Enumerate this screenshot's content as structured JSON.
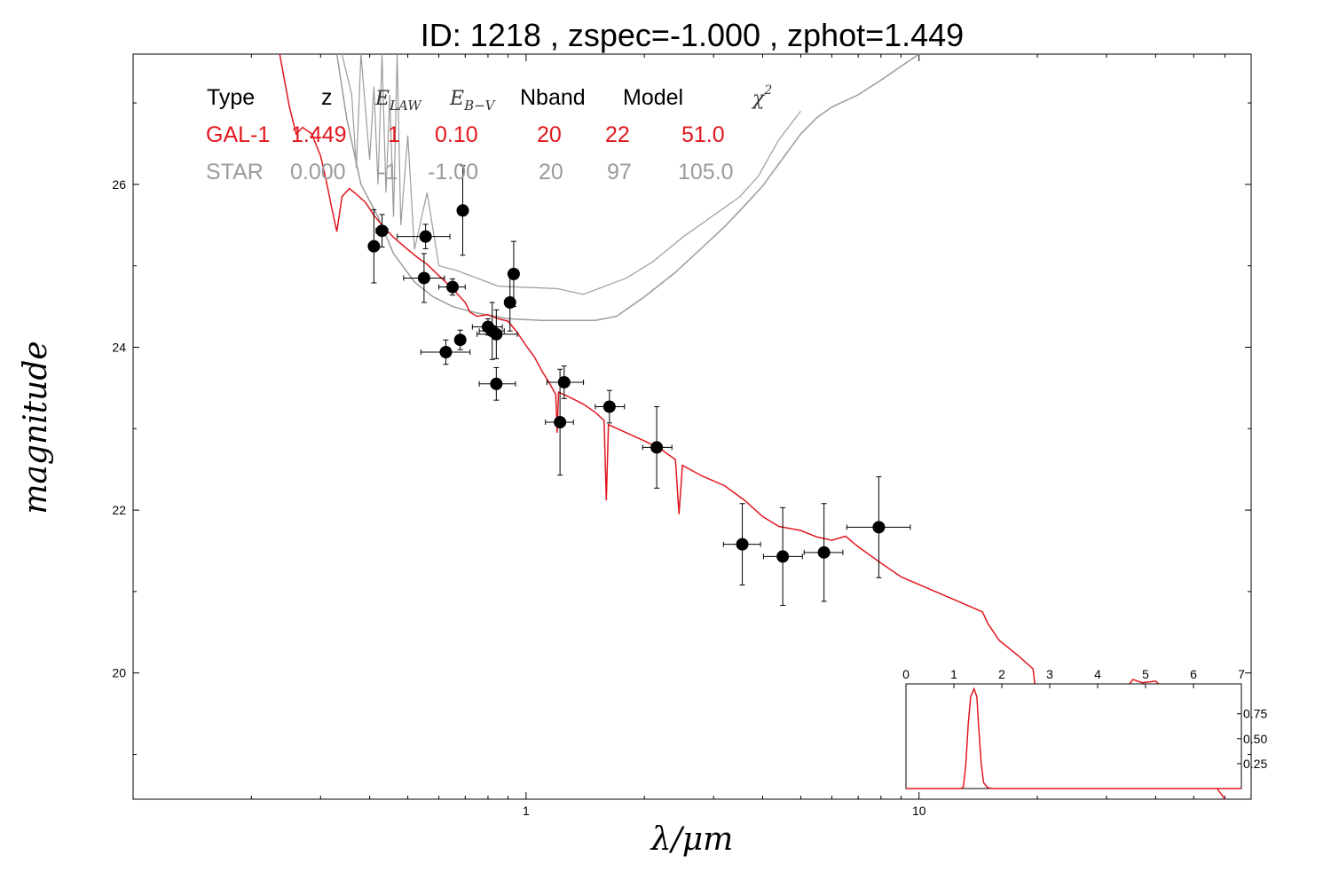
{
  "title": "ID:  1218  , zspec=-1.000 , zphot=1.449",
  "colors": {
    "gal": "#e0171d",
    "star": "#9b9b9b",
    "point": "#000000"
  },
  "table": {
    "headers": [
      "Type",
      "z",
      "E",
      "LAW",
      "E",
      "B−V",
      "Nband",
      "Model",
      "χ",
      "2"
    ],
    "rows": [
      {
        "cells": [
          "GAL-1",
          "1.449",
          "1",
          "0.10",
          "20",
          "22",
          "51.0"
        ]
      },
      {
        "cells": [
          "STAR",
          "0.000",
          "-1",
          "-1.00",
          "20",
          "97",
          "105.0"
        ]
      }
    ]
  },
  "chart_data": {
    "type": "scatter",
    "xlabel": "λ/μm",
    "ylabel": "magnitude",
    "x_scale": "log",
    "y_inverted": true,
    "xlim": [
      0.1,
      70
    ],
    "ylim": [
      27.6,
      18.45
    ],
    "x_ticks": [
      {
        "v": 1,
        "label": "1"
      },
      {
        "v": 10,
        "label": "10"
      }
    ],
    "y_ticks": [
      {
        "v": 20,
        "label": "20"
      },
      {
        "v": 22,
        "label": "22"
      },
      {
        "v": 24,
        "label": "24"
      },
      {
        "v": 26,
        "label": "26"
      }
    ],
    "photometry": [
      {
        "x": 0.41,
        "y": 25.24,
        "xe": [
          0.402,
          0.418
        ],
        "ye": 0.45
      },
      {
        "x": 0.43,
        "y": 25.43,
        "xe": [
          0.415,
          0.445
        ],
        "ye": 0.2
      },
      {
        "x": 0.55,
        "y": 24.85,
        "xe": [
          0.488,
          0.62
        ],
        "ye": 0.3
      },
      {
        "x": 0.555,
        "y": 25.36,
        "xe": [
          0.47,
          0.64
        ],
        "ye": 0.15
      },
      {
        "x": 0.65,
        "y": 24.74,
        "xe": [
          0.6,
          0.7
        ],
        "ye": 0.1
      },
      {
        "x": 0.625,
        "y": 23.94,
        "xe": [
          0.54,
          0.72
        ],
        "ye": 0.15
      },
      {
        "x": 0.68,
        "y": 24.09,
        "xe": [
          0.66,
          0.7
        ],
        "ye": 0.12
      },
      {
        "x": 0.69,
        "y": 25.68,
        "xe": [
          0.67,
          0.71
        ],
        "ye": 0.55
      },
      {
        "x": 0.8,
        "y": 24.25,
        "xe": [
          0.73,
          0.87
        ],
        "ye": 0.1
      },
      {
        "x": 0.82,
        "y": 24.2,
        "xe": [
          0.76,
          0.88
        ],
        "ye": 0.35
      },
      {
        "x": 0.84,
        "y": 24.16,
        "xe": [
          0.75,
          0.95
        ],
        "ye": 0.3
      },
      {
        "x": 0.84,
        "y": 23.55,
        "xe": [
          0.76,
          0.94
        ],
        "ye": 0.2
      },
      {
        "x": 0.91,
        "y": 24.55,
        "xe": [
          0.89,
          0.93
        ],
        "ye": 0.35
      },
      {
        "x": 0.93,
        "y": 24.9,
        "xe": [
          0.91,
          0.95
        ],
        "ye": 0.4
      },
      {
        "x": 1.22,
        "y": 23.08,
        "xe": [
          1.12,
          1.32
        ],
        "ye": 0.65
      },
      {
        "x": 1.25,
        "y": 23.57,
        "xe": [
          1.13,
          1.4
        ],
        "ye": 0.2
      },
      {
        "x": 1.63,
        "y": 23.27,
        "xe": [
          1.5,
          1.78
        ],
        "ye": 0.2
      },
      {
        "x": 2.15,
        "y": 22.77,
        "xe": [
          1.98,
          2.35
        ],
        "ye": 0.5
      },
      {
        "x": 3.55,
        "y": 21.58,
        "xe": [
          3.18,
          3.95
        ],
        "ye": 0.5
      },
      {
        "x": 4.5,
        "y": 21.43,
        "xe": [
          4.02,
          5.05
        ],
        "ye": 0.6
      },
      {
        "x": 5.73,
        "y": 21.48,
        "xe": [
          5.1,
          6.4
        ],
        "ye": 0.6
      },
      {
        "x": 7.9,
        "y": 21.79,
        "xe": [
          6.55,
          9.5
        ],
        "ye": 0.62
      }
    ],
    "gal_model": [
      [
        0.236,
        27.6
      ],
      [
        0.25,
        26.95
      ],
      [
        0.26,
        26.62
      ],
      [
        0.27,
        26.7
      ],
      [
        0.285,
        26.62
      ],
      [
        0.3,
        26.35
      ],
      [
        0.31,
        26.05
      ],
      [
        0.32,
        25.72
      ],
      [
        0.33,
        25.42
      ],
      [
        0.34,
        25.85
      ],
      [
        0.355,
        25.95
      ],
      [
        0.37,
        25.88
      ],
      [
        0.39,
        25.78
      ],
      [
        0.41,
        25.62
      ],
      [
        0.43,
        25.5
      ],
      [
        0.46,
        25.35
      ],
      [
        0.5,
        25.2
      ],
      [
        0.53,
        25.1
      ],
      [
        0.56,
        25.02
      ],
      [
        0.6,
        24.88
      ],
      [
        0.65,
        24.72
      ],
      [
        0.7,
        24.55
      ],
      [
        0.72,
        24.43
      ],
      [
        0.75,
        24.38
      ],
      [
        0.8,
        24.4
      ],
      [
        0.85,
        24.35
      ],
      [
        0.9,
        24.32
      ],
      [
        0.95,
        24.18
      ],
      [
        1.0,
        24.02
      ],
      [
        1.05,
        23.88
      ],
      [
        1.1,
        23.7
      ],
      [
        1.15,
        23.55
      ],
      [
        1.19,
        23.42
      ],
      [
        1.2,
        22.95
      ],
      [
        1.21,
        23.45
      ],
      [
        1.3,
        23.38
      ],
      [
        1.4,
        23.3
      ],
      [
        1.5,
        23.2
      ],
      [
        1.58,
        23.1
      ],
      [
        1.6,
        22.12
      ],
      [
        1.62,
        23.05
      ],
      [
        1.8,
        22.95
      ],
      [
        2.0,
        22.85
      ],
      [
        2.2,
        22.75
      ],
      [
        2.4,
        22.62
      ],
      [
        2.45,
        21.95
      ],
      [
        2.5,
        22.55
      ],
      [
        2.8,
        22.42
      ],
      [
        3.2,
        22.3
      ],
      [
        3.6,
        22.12
      ],
      [
        4.0,
        21.92
      ],
      [
        4.4,
        21.8
      ],
      [
        5.0,
        21.75
      ],
      [
        5.5,
        21.67
      ],
      [
        6.0,
        21.63
      ],
      [
        6.5,
        21.68
      ],
      [
        7.0,
        21.55
      ],
      [
        8.0,
        21.35
      ],
      [
        9.0,
        21.18
      ],
      [
        11.0,
        21.0
      ],
      [
        13.0,
        20.85
      ],
      [
        14.5,
        20.75
      ],
      [
        15.0,
        20.6
      ],
      [
        16.0,
        20.4
      ],
      [
        18.0,
        20.2
      ],
      [
        19.5,
        20.05
      ],
      [
        20.3,
        19.35
      ],
      [
        21.0,
        19.85
      ],
      [
        23.0,
        19.75
      ],
      [
        25.0,
        19.55
      ],
      [
        27.5,
        18.95
      ],
      [
        29.0,
        18.7
      ],
      [
        31.0,
        19.1
      ],
      [
        33.0,
        19.75
      ],
      [
        35.0,
        19.92
      ],
      [
        37.0,
        19.88
      ],
      [
        40.0,
        19.9
      ],
      [
        43.0,
        19.75
      ],
      [
        46.0,
        19.55
      ],
      [
        48.0,
        18.95
      ],
      [
        50.0,
        19.15
      ],
      [
        53.0,
        18.85
      ],
      [
        57.0,
        18.6
      ],
      [
        60.0,
        18.45
      ]
    ],
    "star_model": [
      [
        0.33,
        27.6
      ],
      [
        0.35,
        26.8
      ],
      [
        0.38,
        26.0
      ],
      [
        0.42,
        25.6
      ],
      [
        0.46,
        25.15
      ],
      [
        0.52,
        24.8
      ],
      [
        0.58,
        24.62
      ],
      [
        0.65,
        24.5
      ],
      [
        0.75,
        24.42
      ],
      [
        0.9,
        24.35
      ],
      [
        1.1,
        24.33
      ],
      [
        1.5,
        24.33
      ],
      [
        1.7,
        24.38
      ],
      [
        2.0,
        24.62
      ],
      [
        2.4,
        24.92
      ],
      [
        2.8,
        25.22
      ],
      [
        3.2,
        25.48
      ],
      [
        3.6,
        25.74
      ],
      [
        4.0,
        25.98
      ],
      [
        4.5,
        26.32
      ],
      [
        5.0,
        26.62
      ],
      [
        5.5,
        26.82
      ],
      [
        6.0,
        26.95
      ],
      [
        7.0,
        27.1
      ],
      [
        8.0,
        27.28
      ],
      [
        9.0,
        27.45
      ],
      [
        10.0,
        27.6
      ]
    ],
    "star_absorption": [
      [
        0.34,
        27.6
      ],
      [
        0.36,
        27.1
      ],
      [
        0.37,
        26.2
      ],
      [
        0.38,
        27.6
      ],
      [
        0.4,
        26.3
      ],
      [
        0.41,
        27.2
      ],
      [
        0.42,
        26.0
      ],
      [
        0.43,
        27.6
      ],
      [
        0.44,
        25.9
      ],
      [
        0.45,
        27.1
      ],
      [
        0.46,
        25.6
      ],
      [
        0.47,
        27.6
      ],
      [
        0.48,
        25.5
      ],
      [
        0.5,
        26.6
      ],
      [
        0.52,
        25.2
      ],
      [
        0.56,
        25.9
      ],
      [
        0.6,
        25.0
      ],
      [
        0.66,
        24.95
      ],
      [
        0.85,
        24.75
      ],
      [
        1.2,
        24.72
      ],
      [
        1.4,
        24.65
      ],
      [
        1.8,
        24.85
      ],
      [
        2.1,
        25.05
      ],
      [
        2.5,
        25.35
      ],
      [
        3.5,
        25.85
      ],
      [
        3.9,
        26.1
      ],
      [
        4.4,
        26.55
      ],
      [
        5.0,
        26.9
      ]
    ],
    "inset": {
      "type": "line",
      "xlim": [
        0,
        7
      ],
      "ylim": [
        0,
        1.05
      ],
      "x_ticks": [
        "0",
        "1",
        "2",
        "3",
        "4",
        "5",
        "6",
        "7"
      ],
      "y_ticks": [
        {
          "v": 0.25,
          "label": "0.25"
        },
        {
          "v": 0.5,
          "label": "0.50"
        },
        {
          "v": 0.75,
          "label": "0.75"
        }
      ],
      "pdz": [
        [
          0,
          0
        ],
        [
          1.15,
          0
        ],
        [
          1.2,
          0.02
        ],
        [
          1.25,
          0.25
        ],
        [
          1.3,
          0.65
        ],
        [
          1.35,
          0.92
        ],
        [
          1.42,
          1.0
        ],
        [
          1.48,
          0.92
        ],
        [
          1.52,
          0.6
        ],
        [
          1.57,
          0.25
        ],
        [
          1.62,
          0.06
        ],
        [
          1.7,
          0.01
        ],
        [
          1.8,
          0
        ],
        [
          7,
          0
        ]
      ]
    }
  }
}
